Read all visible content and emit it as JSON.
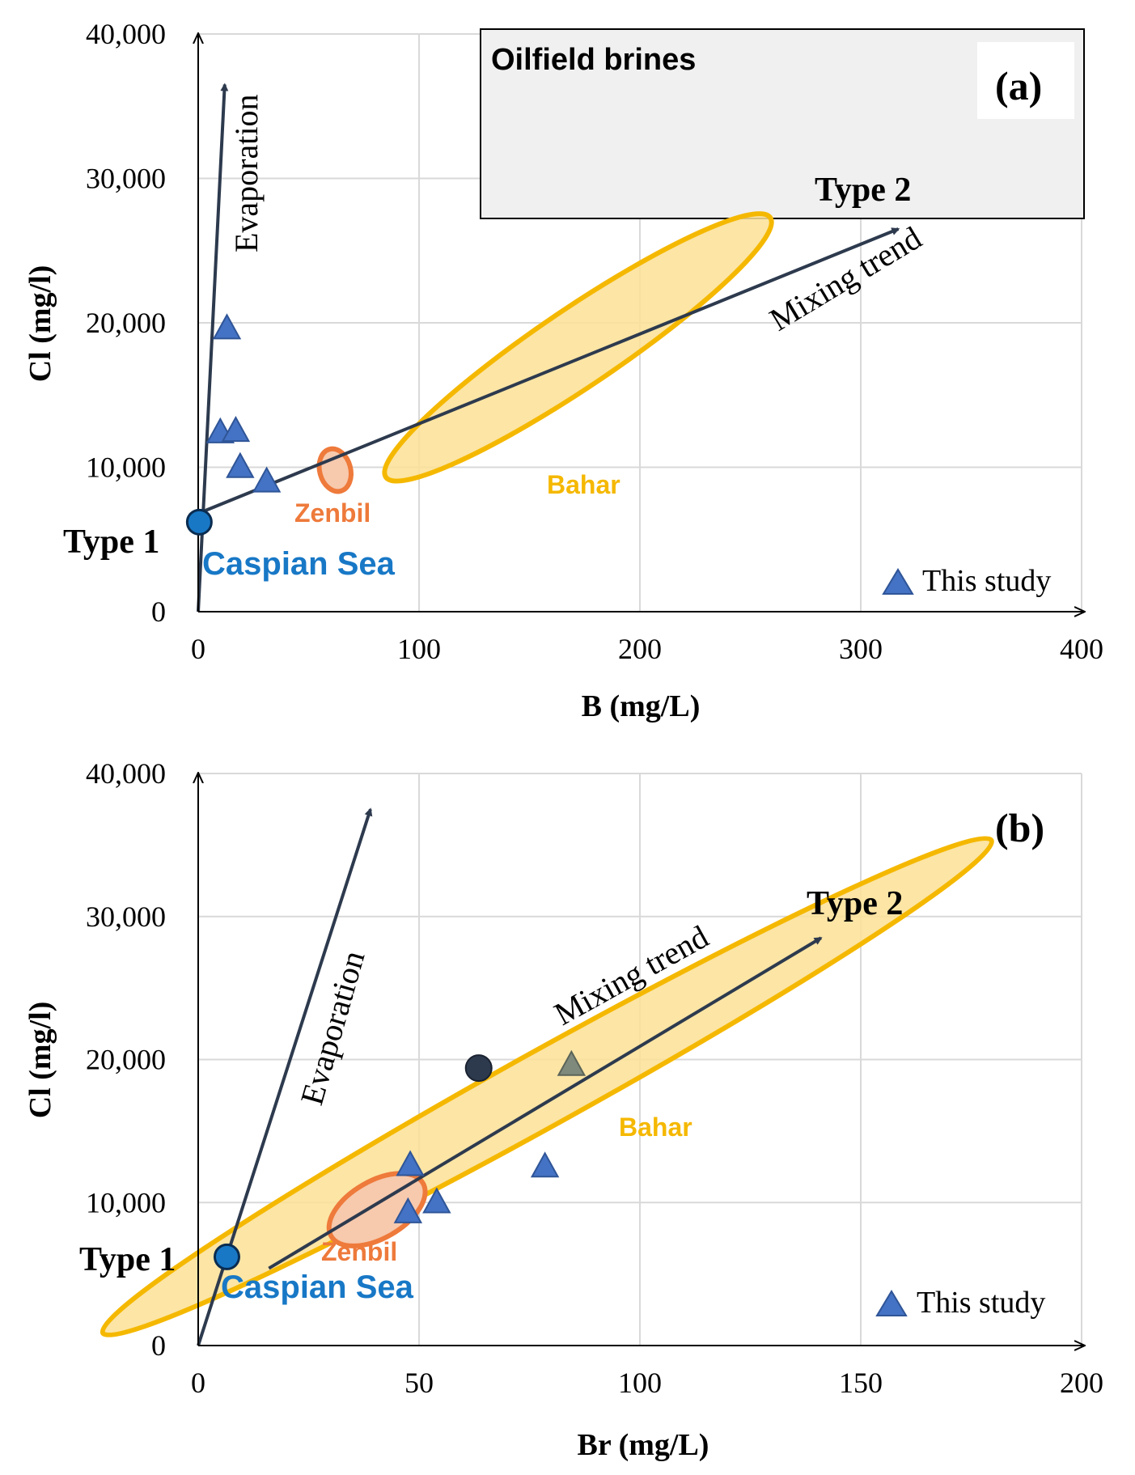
{
  "chart_data": [
    {
      "type": "scatter",
      "panel_label": "(a)",
      "xlabel": "B (mg/L)",
      "ylabel": "Cl (mg/l)",
      "xlim": [
        0,
        400
      ],
      "ylim": [
        0,
        40000
      ],
      "x_ticks": [
        "0",
        "100",
        "200",
        "300",
        "400"
      ],
      "y_ticks": [
        "0",
        "10,000",
        "20,000",
        "30,000",
        "40,000"
      ],
      "grid": true,
      "box_title": "Oilfield brines",
      "annotations": {
        "type1": "Type 1",
        "type2": "Type 2",
        "caspian": "Caspian Sea",
        "zenbil": "Zenbil",
        "bahar": "Bahar",
        "evaporation": "Evaporation",
        "mixing": "Mixing trend"
      },
      "legend": {
        "label": "This study",
        "position": "bottom-right"
      },
      "caspian_point": {
        "x": 0.5,
        "y": 6200
      },
      "points": [
        {
          "x": 13,
          "y": 19700
        },
        {
          "x": 10,
          "y": 12500
        },
        {
          "x": 17,
          "y": 12600
        },
        {
          "x": 19,
          "y": 10100
        },
        {
          "x": 31,
          "y": 9100
        }
      ],
      "zenbil_ellipse": {
        "cx": 62,
        "cy": 9800,
        "rx": 14,
        "ry": 1500,
        "angle": -15
      },
      "bahar_ellipse": {
        "cx": 172,
        "cy": 18300,
        "rx": 210,
        "ry": 2700,
        "angle": -34
      },
      "evaporation_arrow": {
        "x0": 0,
        "y0": 0,
        "x1": 12,
        "y1": 36500
      },
      "mixing_arrow": {
        "x0": 0,
        "y0": 6800,
        "x1": 317,
        "y1": 26500
      }
    },
    {
      "type": "scatter",
      "panel_label": "(b)",
      "xlabel": "Br (mg/L)",
      "ylabel": "Cl (mg/l)",
      "xlim": [
        0,
        200
      ],
      "ylim": [
        0,
        40000
      ],
      "x_ticks": [
        "0",
        "50",
        "100",
        "150",
        "200"
      ],
      "y_ticks": [
        "0",
        "10,000",
        "20,000",
        "30,000",
        "40,000"
      ],
      "grid": true,
      "annotations": {
        "type1": "Type 1",
        "type2": "Type 2",
        "caspian": "Caspian Sea",
        "zenbil": "Zenbil",
        "bahar": "Bahar",
        "evaporation": "Evaporation",
        "mixing": "Mixing trend"
      },
      "legend": {
        "label": "This study",
        "position": "bottom-right"
      },
      "caspian_point": {
        "x": 6.5,
        "y": 6200
      },
      "points": [
        {
          "x": 48,
          "y": 12700
        },
        {
          "x": 47.5,
          "y": 9400
        },
        {
          "x": 54,
          "y": 10100
        },
        {
          "x": 78.5,
          "y": 12600
        },
        {
          "x": 84.5,
          "y": 19700,
          "style": "gray"
        }
      ],
      "dark_point": {
        "x": 63.5,
        "y": 19400
      },
      "zenbil_ellipse": {
        "cx": 40.5,
        "cy": 9500,
        "rx": 12,
        "ry": 2000,
        "angle": -30
      },
      "bahar_ellipse": {
        "cx": 79,
        "cy": 18100,
        "rx": 115,
        "ry": 2600,
        "angle": -29
      },
      "evaporation_arrow": {
        "x0": 0,
        "y0": 0,
        "x1": 39,
        "y1": 37500
      },
      "mixing_arrow": {
        "x0": 16,
        "y0": 5400,
        "x1": 141,
        "y1": 28500
      }
    }
  ]
}
